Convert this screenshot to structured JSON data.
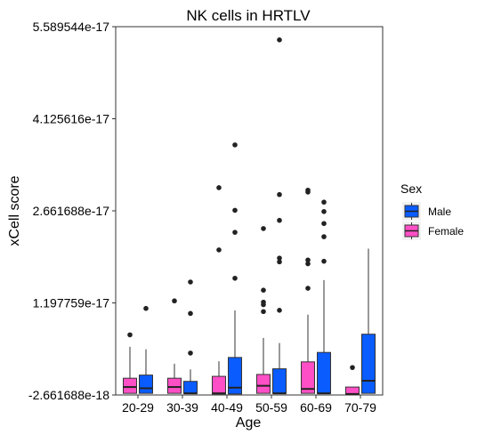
{
  "chart_data": {
    "type": "boxplot",
    "title": "NK cells in HRTLV",
    "xlabel": "Age",
    "ylabel": "xCell score",
    "y_ticks": [
      "-2.661688e-18",
      "1.197759e-17",
      "2.661688e-17",
      "4.125616e-17",
      "5.589544e-17"
    ],
    "y_tick_values": [
      -2.661688e-18,
      1.197759e-17,
      2.661688e-17,
      4.125616e-17,
      5.589544e-17
    ],
    "ylim": [
      -2.661688e-18,
      5.589544e-17
    ],
    "categories": [
      "20-29",
      "30-39",
      "40-49",
      "50-59",
      "60-69",
      "70-79"
    ],
    "legend": {
      "title": "Sex",
      "placement": "right",
      "entries": [
        {
          "label": "Male",
          "color": "#0a5cff"
        },
        {
          "label": "Female",
          "color": "#ff4fc6"
        }
      ]
    },
    "series": [
      {
        "name": "Female",
        "color": "#ff4fc6",
        "boxes": [
          {
            "category": "20-29",
            "min": -2.4e-18,
            "q1": -2.4e-18,
            "median": -1.4e-18,
            "q3": 0.0,
            "max": 5e-18,
            "outliers": [
              6.9e-18
            ]
          },
          {
            "category": "30-39",
            "min": -2.4e-18,
            "q1": -2.4e-18,
            "median": -1.4e-18,
            "q3": 0.0,
            "max": 2.3e-18,
            "outliers": [
              1.23e-17
            ]
          },
          {
            "category": "40-49",
            "min": -2.5e-18,
            "q1": -2.5e-18,
            "median": -2.4e-18,
            "q3": 3e-19,
            "max": 2.7e-18,
            "outliers": [
              2.04e-17,
              3.03e-17
            ]
          },
          {
            "category": "50-59",
            "min": -2.4e-18,
            "q1": -2.4e-18,
            "median": -1.2e-18,
            "q3": 6e-19,
            "max": 6.4e-18,
            "outliers": [
              1.06e-17,
              1.17e-17,
              1.21e-17,
              1.4e-17,
              2.38e-17
            ]
          },
          {
            "category": "60-69",
            "min": -2.4e-18,
            "q1": -2.4e-18,
            "median": -1.7e-18,
            "q3": 2.6e-18,
            "max": 1.01e-17,
            "outliers": [
              1.43e-17,
              1.82e-17,
              1.88e-17,
              2.96e-17,
              2.99e-17
            ]
          },
          {
            "category": "70-79",
            "min": -2.5e-18,
            "q1": -2.5e-18,
            "median": -2.5e-18,
            "q3": -1.4e-18,
            "max": -1.4e-18,
            "outliers": [
              1.7e-18
            ]
          }
        ]
      },
      {
        "name": "Male",
        "color": "#0a5cff",
        "boxes": [
          {
            "category": "20-29",
            "min": -2.4e-18,
            "q1": -2.4e-18,
            "median": -1.6e-18,
            "q3": 5e-19,
            "max": 4.6e-18,
            "outliers": [
              1.11e-17
            ]
          },
          {
            "category": "30-39",
            "min": -2.4e-18,
            "q1": -2.4e-18,
            "median": -2.4e-18,
            "q3": -5e-19,
            "max": 1.4e-18,
            "outliers": [
              4e-18,
              1.03e-17,
              1.53e-17
            ]
          },
          {
            "category": "40-49",
            "min": -2.5e-18,
            "q1": -2.5e-18,
            "median": -1.5e-18,
            "q3": 3.3e-18,
            "max": 1.08e-17,
            "outliers": [
              1.59e-17,
              2.32e-17,
              2.67e-17,
              3.71e-17
            ]
          },
          {
            "category": "50-59",
            "min": -2.4e-18,
            "q1": -2.4e-18,
            "median": -2.4e-18,
            "q3": 1.5e-18,
            "max": 5.6e-18,
            "outliers": [
              1.08e-17,
              1.85e-17,
              1.91e-17,
              2.51e-17,
              2.92e-17,
              5.38e-17
            ]
          },
          {
            "category": "60-69",
            "min": -2.4e-18,
            "q1": -2.4e-18,
            "median": -2.4e-18,
            "q3": 4.1e-18,
            "max": 1.56e-17,
            "outliers": [
              1.86e-17,
              2.25e-17,
              2.46e-17,
              2.65e-17,
              2.8e-17
            ]
          },
          {
            "category": "70-79",
            "min": -2.4e-18,
            "q1": -2.4e-18,
            "median": -4e-19,
            "q3": 7e-18,
            "max": 2.06e-17,
            "outliers": []
          }
        ]
      }
    ],
    "grid": false,
    "panel_border": true
  }
}
